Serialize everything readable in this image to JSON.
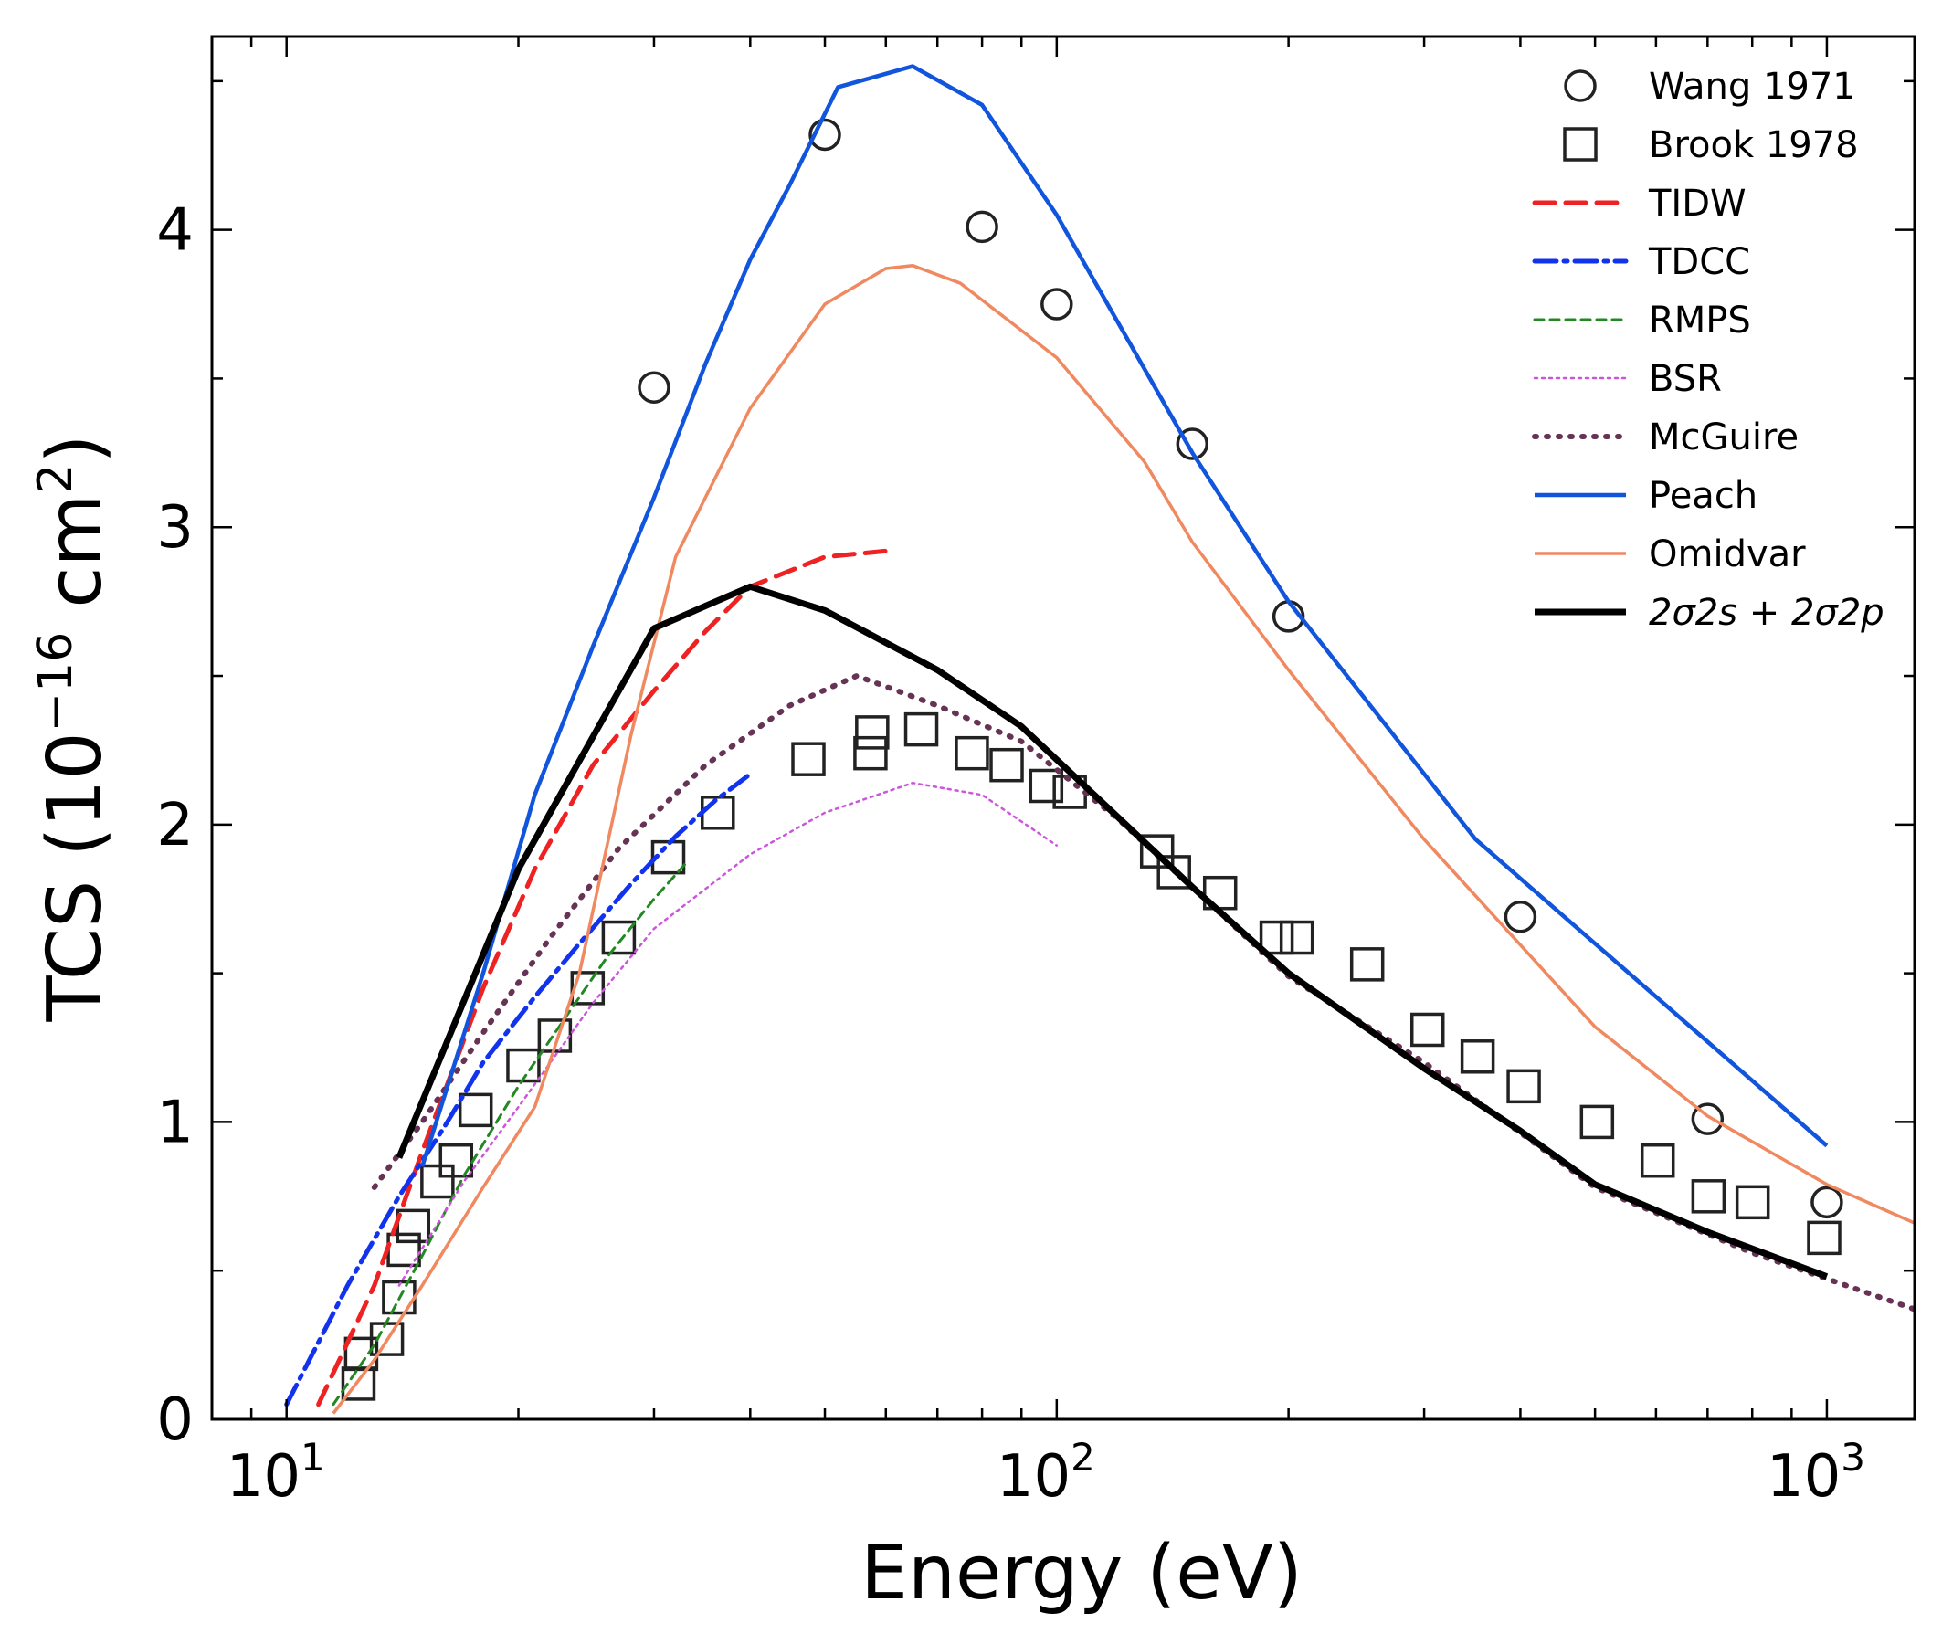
{
  "chart_data": {
    "type": "line",
    "title": "",
    "xlabel": "Energy (eV)",
    "ylabel_parts": {
      "pre": "TCS (10",
      "exp": "−16",
      "mid": " cm",
      "exp2": "2",
      "post": ")"
    },
    "xscale": "log",
    "xlim": [
      8,
      1300
    ],
    "ylim": [
      0,
      4.65
    ],
    "x_ticks": [
      {
        "value": 10,
        "base": "10",
        "exp": "1"
      },
      {
        "value": 100,
        "base": "10",
        "exp": "2"
      },
      {
        "value": 1000,
        "base": "10",
        "exp": "3"
      }
    ],
    "y_ticks": [
      {
        "value": 0,
        "label": "0"
      },
      {
        "value": 1,
        "label": "1"
      },
      {
        "value": 2,
        "label": "2"
      },
      {
        "value": 3,
        "label": "3"
      },
      {
        "value": 4,
        "label": "4"
      }
    ],
    "legend_position": "top-right",
    "series": [
      {
        "name": "Wang 1971",
        "kind": "marker",
        "marker": "circle",
        "color": "#222222",
        "points": [
          [
            30,
            3.47
          ],
          [
            50,
            4.32
          ],
          [
            80,
            4.01
          ],
          [
            100,
            3.75
          ],
          [
            150,
            3.28
          ],
          [
            200,
            2.7
          ],
          [
            400,
            1.69
          ],
          [
            700,
            1.01
          ],
          [
            1000,
            0.73
          ]
        ]
      },
      {
        "name": "Brook 1978",
        "kind": "marker",
        "marker": "square",
        "color": "#222222",
        "points": [
          [
            12.4,
            0.12
          ],
          [
            12.5,
            0.22
          ],
          [
            13.5,
            0.27
          ],
          [
            14,
            0.41
          ],
          [
            14.2,
            0.57
          ],
          [
            14.6,
            0.65
          ],
          [
            15.7,
            0.8
          ],
          [
            16.6,
            0.87
          ],
          [
            17.6,
            1.04
          ],
          [
            20.3,
            1.19
          ],
          [
            22.3,
            1.29
          ],
          [
            24.6,
            1.45
          ],
          [
            27,
            1.62
          ],
          [
            31.3,
            1.89
          ],
          [
            36.3,
            2.04
          ],
          [
            47.6,
            2.22
          ],
          [
            57.3,
            2.24
          ],
          [
            57.6,
            2.31
          ],
          [
            66.7,
            2.32
          ],
          [
            77.6,
            2.24
          ],
          [
            86.1,
            2.2
          ],
          [
            96.9,
            2.13
          ],
          [
            104,
            2.11
          ],
          [
            135,
            1.91
          ],
          [
            142,
            1.84
          ],
          [
            163,
            1.77
          ],
          [
            193,
            1.62
          ],
          [
            205,
            1.62
          ],
          [
            253,
            1.53
          ],
          [
            303,
            1.31
          ],
          [
            352,
            1.22
          ],
          [
            404,
            1.12
          ],
          [
            503,
            1.0
          ],
          [
            603,
            0.87
          ],
          [
            702,
            0.75
          ],
          [
            801,
            0.73
          ],
          [
            992,
            0.61
          ]
        ]
      },
      {
        "name": "TIDW",
        "kind": "line",
        "color": "#ee2222",
        "width": 5,
        "dash": "22 12",
        "points": [
          [
            11,
            0.05
          ],
          [
            13,
            0.45
          ],
          [
            15,
            0.9
          ],
          [
            18,
            1.45
          ],
          [
            21,
            1.85
          ],
          [
            25,
            2.2
          ],
          [
            30,
            2.45
          ],
          [
            35,
            2.65
          ],
          [
            40,
            2.8
          ],
          [
            50,
            2.9
          ],
          [
            60,
            2.92
          ]
        ]
      },
      {
        "name": "TDCC",
        "kind": "line",
        "color": "#1133ee",
        "width": 5,
        "dash": "24 8 4 8",
        "points": [
          [
            10,
            0.05
          ],
          [
            12,
            0.45
          ],
          [
            14,
            0.75
          ],
          [
            16,
            0.98
          ],
          [
            18,
            1.2
          ],
          [
            21,
            1.42
          ],
          [
            24,
            1.6
          ],
          [
            28,
            1.8
          ],
          [
            32,
            1.96
          ],
          [
            36,
            2.08
          ],
          [
            40,
            2.17
          ]
        ]
      },
      {
        "name": "RMPS",
        "kind": "line",
        "color": "#228822",
        "width": 3,
        "dash": "10 7",
        "points": [
          [
            11.5,
            0.05
          ],
          [
            13,
            0.25
          ],
          [
            15,
            0.55
          ],
          [
            17,
            0.82
          ],
          [
            20,
            1.12
          ],
          [
            23,
            1.35
          ],
          [
            26,
            1.55
          ],
          [
            30,
            1.75
          ],
          [
            33,
            1.87
          ]
        ]
      },
      {
        "name": "BSR",
        "kind": "line",
        "color": "#cc55dd",
        "width": 2.5,
        "dash": "3 5",
        "points": [
          [
            14,
            0.45
          ],
          [
            17,
            0.8
          ],
          [
            20,
            1.05
          ],
          [
            25,
            1.4
          ],
          [
            30,
            1.65
          ],
          [
            40,
            1.9
          ],
          [
            50,
            2.04
          ],
          [
            65,
            2.14
          ],
          [
            80,
            2.1
          ],
          [
            100,
            1.93
          ]
        ]
      },
      {
        "name": "McGuire",
        "kind": "line",
        "color": "#663355",
        "width": 6,
        "dash": "2 11",
        "points": [
          [
            13,
            0.78
          ],
          [
            15,
            1.0
          ],
          [
            18,
            1.3
          ],
          [
            22,
            1.62
          ],
          [
            27,
            1.92
          ],
          [
            35,
            2.2
          ],
          [
            45,
            2.4
          ],
          [
            55,
            2.5
          ],
          [
            70,
            2.4
          ],
          [
            90,
            2.28
          ],
          [
            120,
            2.02
          ],
          [
            200,
            1.49
          ],
          [
            300,
            1.2
          ],
          [
            500,
            0.78
          ],
          [
            800,
            0.56
          ],
          [
            1300,
            0.37
          ]
        ]
      },
      {
        "name": "Peach",
        "kind": "line",
        "color": "#1155dd",
        "width": 4.5,
        "dash": "",
        "points": [
          [
            15,
            0.85
          ],
          [
            18,
            1.5
          ],
          [
            21,
            2.1
          ],
          [
            25,
            2.6
          ],
          [
            30,
            3.1
          ],
          [
            35,
            3.55
          ],
          [
            40,
            3.9
          ],
          [
            45,
            4.15
          ],
          [
            52,
            4.48
          ],
          [
            65,
            4.55
          ],
          [
            80,
            4.42
          ],
          [
            100,
            4.05
          ],
          [
            150,
            3.25
          ],
          [
            200,
            2.75
          ],
          [
            350,
            1.95
          ],
          [
            500,
            1.6
          ],
          [
            700,
            1.27
          ],
          [
            1000,
            0.92
          ]
        ]
      },
      {
        "name": "Omidvar",
        "kind": "line",
        "color": "#f08860",
        "width": 3.5,
        "dash": "",
        "points": [
          [
            11.5,
            0.02
          ],
          [
            13,
            0.2
          ],
          [
            15,
            0.45
          ],
          [
            18,
            0.78
          ],
          [
            21,
            1.05
          ],
          [
            24,
            1.5
          ],
          [
            28,
            2.3
          ],
          [
            32,
            2.9
          ],
          [
            40,
            3.4
          ],
          [
            50,
            3.75
          ],
          [
            60,
            3.87
          ],
          [
            65,
            3.88
          ],
          [
            75,
            3.82
          ],
          [
            100,
            3.57
          ],
          [
            130,
            3.22
          ],
          [
            150,
            2.95
          ],
          [
            200,
            2.52
          ],
          [
            300,
            1.95
          ],
          [
            500,
            1.32
          ],
          [
            700,
            1.02
          ],
          [
            1000,
            0.79
          ],
          [
            1300,
            0.66
          ]
        ]
      },
      {
        "name": "2σ2s + 2σ2p",
        "kind": "line",
        "color": "#000000",
        "width": 7,
        "dash": "",
        "legend_math": true,
        "points": [
          [
            14,
            0.88
          ],
          [
            20,
            1.85
          ],
          [
            30,
            2.66
          ],
          [
            40,
            2.8
          ],
          [
            50,
            2.72
          ],
          [
            70,
            2.52
          ],
          [
            90,
            2.33
          ],
          [
            150,
            1.79
          ],
          [
            200,
            1.5
          ],
          [
            300,
            1.18
          ],
          [
            400,
            0.97
          ],
          [
            500,
            0.79
          ],
          [
            700,
            0.63
          ],
          [
            1000,
            0.48
          ]
        ]
      }
    ]
  }
}
